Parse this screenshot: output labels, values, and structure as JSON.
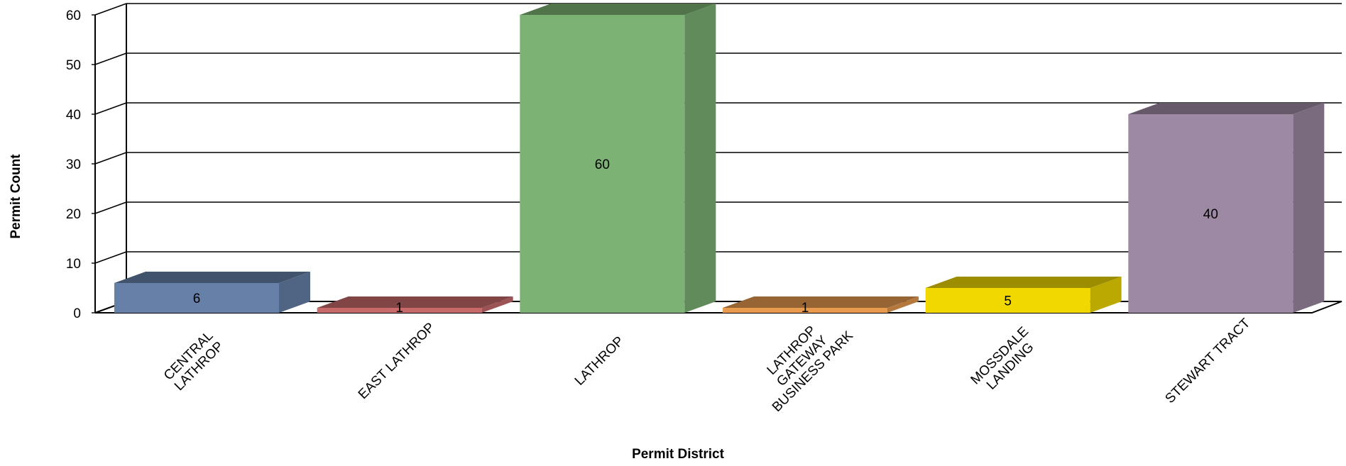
{
  "chart_data": {
    "type": "bar",
    "title": "",
    "xlabel": "Permit District",
    "ylabel": "Permit Count",
    "ylim": [
      0,
      60
    ],
    "yticks": [
      0,
      10,
      20,
      30,
      40,
      50,
      60
    ],
    "grid": true,
    "categories": [
      [
        "CENTRAL",
        "LATHROP"
      ],
      [
        "EAST LATHROP"
      ],
      [
        "LATHROP"
      ],
      [
        "LATHROP",
        "GATEWAY",
        "BUSINESS PARK"
      ],
      [
        "MOSSDALE",
        "LANDING"
      ],
      [
        "STEWART TRACT"
      ]
    ],
    "values": [
      6,
      1,
      60,
      1,
      5,
      40
    ],
    "colors": [
      "#6680a8",
      "#c86a6a",
      "#7cb274",
      "#e89a4e",
      "#f0d800",
      "#9d89a3"
    ]
  }
}
